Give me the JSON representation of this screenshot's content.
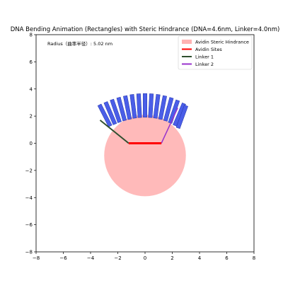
{
  "chart_data": {
    "type": "scatter",
    "title": "DNA Bending Animation (Rectangles) with Steric Hindrance (DNA=4.6nm, Linker=4.0nm)",
    "xlabel": "",
    "ylabel": "",
    "xlim": [
      -8,
      8
    ],
    "ylim": [
      -8,
      8
    ],
    "x_ticks": [
      -8,
      -6,
      -4,
      -2,
      0,
      2,
      4,
      6,
      8
    ],
    "y_ticks": [
      -8,
      -6,
      -4,
      -2,
      0,
      2,
      4,
      6,
      8
    ],
    "x_tick_labels": [
      "−8",
      "−6",
      "−4",
      "−2",
      "0",
      "2",
      "4",
      "6",
      "8"
    ],
    "y_tick_labels": [
      "−8",
      "−6",
      "−4",
      "−2",
      "0",
      "2",
      "4",
      "6",
      "8"
    ],
    "grid": false,
    "aspect": "equal",
    "annotation": "Radius（曲率半径）: 5.02 nm",
    "legend_position": "top-right",
    "legend": [
      {
        "label": "Avidin Steric Hindrance",
        "kind": "patch",
        "color": "#ffb3b3"
      },
      {
        "label": "Avidin Sites",
        "kind": "line",
        "color": "#ff0000"
      },
      {
        "label": "Linker 1",
        "kind": "line",
        "color": "#2f4f2f"
      },
      {
        "label": "Linker 2",
        "kind": "line",
        "color": "#9933cc"
      }
    ],
    "avidin_circle": {
      "center": [
        0,
        -0.9
      ],
      "radius": 3.0,
      "color": "#ffb3b3"
    },
    "avidin_sites": {
      "points": [
        [
          -1.2,
          0
        ],
        [
          1.2,
          0
        ]
      ],
      "color": "#ff0000"
    },
    "linker1": {
      "points": [
        [
          -1.2,
          0
        ],
        [
          -3.3,
          1.7
        ]
      ],
      "color": "#2f4f2f"
    },
    "linker2": {
      "points": [
        [
          1.2,
          0
        ],
        [
          2.4,
          2.6
        ]
      ],
      "color": "#9933cc"
    },
    "dna_rectangles": {
      "color": "#4a5ee8",
      "edgecolor": "#2233aa",
      "width": 0.28,
      "height": 1.75,
      "segments": [
        {
          "cx": -2.95,
          "cy": 2.05,
          "angle": -27
        },
        {
          "cx": -2.55,
          "cy": 2.22,
          "angle": -23
        },
        {
          "cx": -2.15,
          "cy": 2.38,
          "angle": -19
        },
        {
          "cx": -1.72,
          "cy": 2.52,
          "angle": -15
        },
        {
          "cx": -1.29,
          "cy": 2.63,
          "angle": -11
        },
        {
          "cx": -0.86,
          "cy": 2.72,
          "angle": -7
        },
        {
          "cx": -0.43,
          "cy": 2.77,
          "angle": -3
        },
        {
          "cx": 0.0,
          "cy": 2.79,
          "angle": 0
        },
        {
          "cx": 0.43,
          "cy": 2.77,
          "angle": 3
        },
        {
          "cx": 0.86,
          "cy": 2.72,
          "angle": 7
        },
        {
          "cx": 1.29,
          "cy": 2.63,
          "angle": 11
        },
        {
          "cx": 1.72,
          "cy": 2.5,
          "angle": 15
        },
        {
          "cx": 2.12,
          "cy": 2.33,
          "angle": 19
        },
        {
          "cx": 2.52,
          "cy": 2.12,
          "angle": 23
        },
        {
          "cx": 2.72,
          "cy": 1.95,
          "angle": 20
        }
      ]
    }
  }
}
